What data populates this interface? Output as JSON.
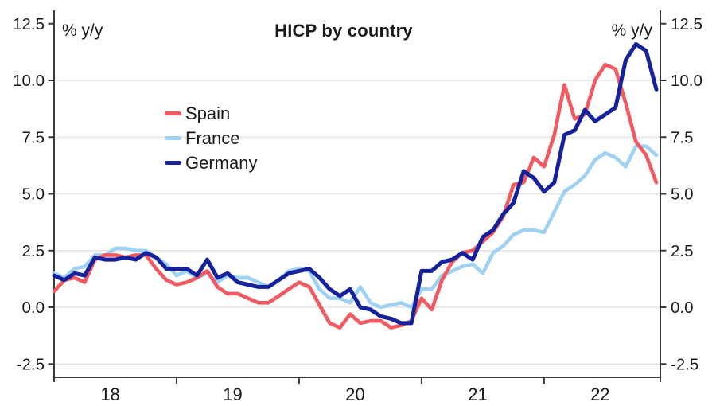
{
  "colors": {
    "background": "#ffffff",
    "grid": "#e8e4e2",
    "axis": "#3b3b3b",
    "text": "#1a1a1a"
  },
  "chart_data": {
    "type": "line",
    "title": "HICP by country",
    "ylabel_left": "% y/y",
    "ylabel_right": "% y/y",
    "frequency": "monthly",
    "x_start": "2018-01",
    "x_end": "2022-12",
    "grid": true,
    "legend_position": "upper-left-inside",
    "y_axis": {
      "ticks": [
        -2.5,
        0,
        2.5,
        5,
        7.5,
        10,
        12.5
      ],
      "tick_labels": [
        "-2.5",
        "0.0",
        "2.5",
        "5.0",
        "7.5",
        "10.0",
        "12.5"
      ],
      "gridlines": [
        -2.5,
        0,
        2.5,
        5,
        7.5,
        10
      ],
      "ylim": [
        -3.1,
        13.1
      ],
      "mirrored_right_axis": true
    },
    "x_axis": {
      "tick_month_indices": [
        12,
        24,
        36,
        48
      ],
      "labels": [
        {
          "text": "18",
          "month_index": 5.5
        },
        {
          "text": "19",
          "month_index": 17.5
        },
        {
          "text": "20",
          "month_index": 29.5
        },
        {
          "text": "21",
          "month_index": 41.5
        },
        {
          "text": "22",
          "month_index": 53.5
        }
      ]
    },
    "series": [
      {
        "name": "Spain",
        "color": "#f25a61",
        "values": [
          0.7,
          1.2,
          1.3,
          1.1,
          2.1,
          2.3,
          2.3,
          2.2,
          2.3,
          2.3,
          1.7,
          1.2,
          1.0,
          1.1,
          1.3,
          1.6,
          0.9,
          0.6,
          0.6,
          0.4,
          0.2,
          0.2,
          0.5,
          0.8,
          1.1,
          0.9,
          0.1,
          -0.7,
          -0.9,
          -0.3,
          -0.7,
          -0.6,
          -0.6,
          -0.9,
          -0.8,
          -0.6,
          0.4,
          -0.1,
          1.2,
          2.0,
          2.4,
          2.5,
          2.9,
          3.3,
          4.0,
          5.4,
          5.5,
          6.6,
          6.2,
          7.6,
          9.8,
          8.3,
          8.5,
          10.0,
          10.7,
          10.5,
          9.0,
          7.3,
          6.7,
          5.5
        ]
      },
      {
        "name": "France",
        "color": "#9fd1f4",
        "values": [
          1.5,
          1.3,
          1.7,
          1.8,
          2.3,
          2.3,
          2.6,
          2.6,
          2.5,
          2.5,
          2.2,
          1.9,
          1.4,
          1.6,
          1.3,
          1.5,
          1.1,
          1.4,
          1.3,
          1.3,
          1.1,
          0.9,
          1.2,
          1.6,
          1.7,
          1.6,
          0.8,
          0.4,
          0.4,
          0.2,
          0.9,
          0.2,
          0.0,
          0.1,
          0.2,
          0.0,
          0.8,
          0.8,
          1.4,
          1.6,
          1.8,
          1.9,
          1.5,
          2.4,
          2.7,
          3.2,
          3.4,
          3.4,
          3.3,
          4.2,
          5.1,
          5.4,
          5.8,
          6.5,
          6.8,
          6.6,
          6.2,
          7.1,
          7.1,
          6.7
        ]
      },
      {
        "name": "Germany",
        "color": "#16219c",
        "values": [
          1.4,
          1.2,
          1.5,
          1.4,
          2.2,
          2.1,
          2.1,
          2.2,
          2.1,
          2.4,
          2.2,
          1.7,
          1.7,
          1.7,
          1.4,
          2.1,
          1.3,
          1.5,
          1.1,
          1.0,
          0.9,
          0.9,
          1.2,
          1.5,
          1.6,
          1.7,
          1.3,
          0.8,
          0.5,
          0.8,
          0.0,
          -0.1,
          -0.4,
          -0.5,
          -0.7,
          -0.7,
          1.6,
          1.6,
          2.0,
          2.1,
          2.4,
          2.1,
          3.1,
          3.4,
          4.1,
          4.6,
          6.0,
          5.7,
          5.1,
          5.5,
          7.6,
          7.8,
          8.7,
          8.2,
          8.5,
          8.8,
          10.9,
          11.6,
          11.3,
          9.6
        ]
      }
    ]
  }
}
